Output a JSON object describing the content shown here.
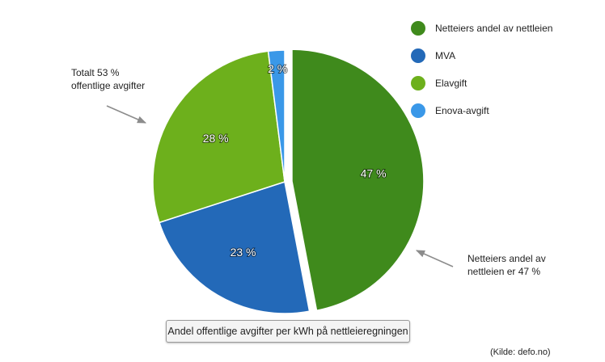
{
  "chart_data": {
    "type": "pie",
    "slices": [
      {
        "label": "Netteiers andel av nettleien",
        "value": 47,
        "display": "47 %",
        "color": "#3f8a1c",
        "exploded": true
      },
      {
        "label": "MVA",
        "value": 23,
        "display": "23 %",
        "color": "#2369b8",
        "exploded": false
      },
      {
        "label": "Elavgift",
        "value": 28,
        "display": "28 %",
        "color": "#6db01c",
        "exploded": false
      },
      {
        "label": "Enova-avgift",
        "value": 2,
        "display": "2 %",
        "color": "#3a98e8",
        "exploded": false
      }
    ],
    "legend_position": "top-right"
  },
  "annotations": {
    "left": {
      "line1": "Totalt 53 %",
      "line2": "offentlige avgifter"
    },
    "right": {
      "line1": "Netteiers andel av",
      "line2": "nettleien er 47 %"
    }
  },
  "caption": "Andel offentlige avgifter per kWh på nettleieregningen",
  "source": "(Kilde: defo.no)"
}
